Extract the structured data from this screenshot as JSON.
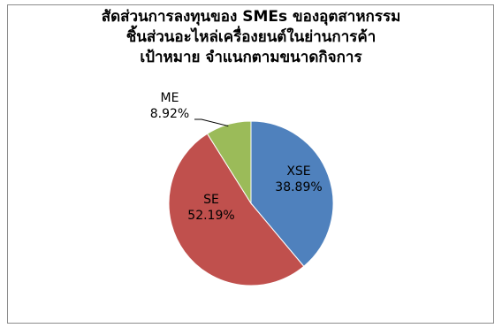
{
  "chart_data": {
    "type": "pie",
    "title_lines": [
      "สัดส่วนการลงทุนของ SMEs ของอุตสาหกรรม",
      "ชิ้นส่วนอะไหล่เครื่องยนต์ในย่านการค้า",
      "เป้าหมาย จำแนกตามขนาดกิจการ"
    ],
    "slices": [
      {
        "label": "XSE",
        "value": 38.89,
        "value_text": "38.89%",
        "color": "#4f81bd"
      },
      {
        "label": "SE",
        "value": 52.19,
        "value_text": "52.19%",
        "color": "#c0504d"
      },
      {
        "label": "ME",
        "value": 8.92,
        "value_text": "8.92%",
        "color": "#9bbb59"
      }
    ],
    "legend": "none"
  }
}
